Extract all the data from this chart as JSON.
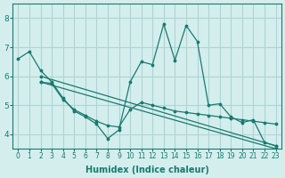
{
  "background_color": "#d4eeee",
  "grid_color": "#aed4d4",
  "line_color": "#1a7a6e",
  "xlabel": "Humidex (Indice chaleur)",
  "ylim": [
    3.5,
    8.5
  ],
  "xlim": [
    -0.5,
    23.5
  ],
  "yticks": [
    4,
    5,
    6,
    7,
    8
  ],
  "xticks": [
    0,
    1,
    2,
    3,
    4,
    5,
    6,
    7,
    8,
    9,
    10,
    11,
    12,
    13,
    14,
    15,
    16,
    17,
    18,
    19,
    20,
    21,
    22,
    23
  ],
  "series": [
    {
      "x": [
        0,
        1,
        2,
        3,
        4,
        5,
        6,
        7,
        8,
        9,
        10,
        11,
        12,
        13,
        14,
        15,
        16,
        17,
        18,
        19,
        20,
        21,
        22,
        23
      ],
      "y": [
        6.6,
        6.85,
        6.2,
        5.8,
        5.25,
        4.8,
        4.6,
        4.35,
        3.85,
        4.15,
        5.8,
        6.5,
        6.4,
        7.8,
        6.55,
        7.75,
        7.2,
        5.0,
        5.05,
        4.6,
        4.4,
        4.5,
        3.72,
        3.6
      ]
    },
    {
      "x": [
        2,
        23
      ],
      "y": [
        6.0,
        3.6
      ]
    },
    {
      "x": [
        2,
        23
      ],
      "y": [
        5.8,
        3.5
      ]
    },
    {
      "x": [
        2,
        3,
        4,
        5,
        6,
        7,
        8,
        9,
        10,
        11,
        12,
        13,
        14,
        15,
        16,
        17,
        18,
        19,
        20,
        21,
        22,
        23
      ],
      "y": [
        5.8,
        5.75,
        5.2,
        4.85,
        4.65,
        4.45,
        4.3,
        4.25,
        4.85,
        5.1,
        5.0,
        4.9,
        4.8,
        4.75,
        4.7,
        4.65,
        4.6,
        4.55,
        4.5,
        4.45,
        4.4,
        4.35
      ]
    }
  ]
}
